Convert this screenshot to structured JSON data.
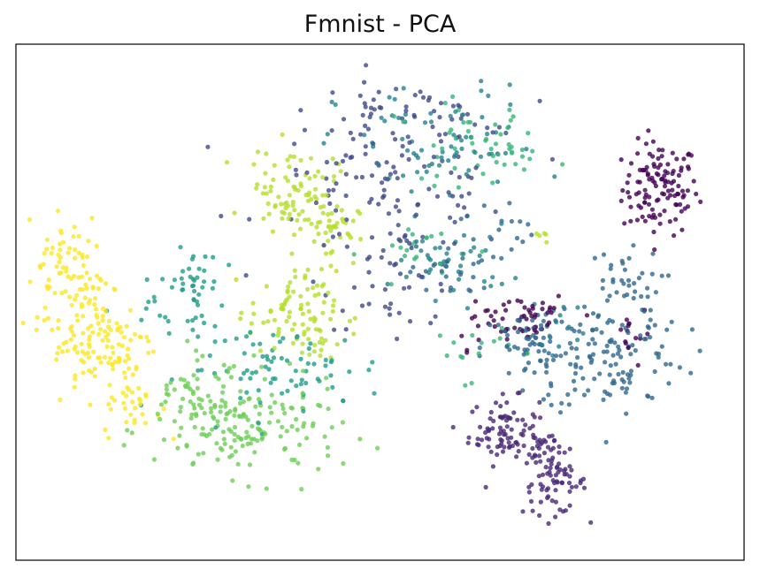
{
  "chart_data": {
    "type": "scatter",
    "title": "Fmnist - PCA",
    "xlabel": "",
    "ylabel": "",
    "xticks": false,
    "yticks": false,
    "grid": false,
    "legend": "none",
    "xlim": [
      0,
      100
    ],
    "ylim": [
      0,
      100
    ],
    "colormap": "viridis",
    "point_alpha": 0.8,
    "series": [
      {
        "class": 0,
        "color": "#440154",
        "blobs": [
          [
            88.5,
            72,
            2.6,
            4.5,
            120
          ],
          [
            70,
            47.5,
            3,
            2.5,
            45
          ],
          [
            84,
            44,
            1.6,
            3,
            14
          ],
          [
            64,
            46,
            2,
            2.5,
            12
          ]
        ]
      },
      {
        "class": 1,
        "color": "#482878",
        "blobs": [
          [
            67,
            25,
            2.4,
            3.2,
            80
          ],
          [
            74,
            15,
            2.2,
            3,
            70
          ],
          [
            72,
            23,
            1.6,
            2.5,
            25
          ]
        ]
      },
      {
        "class": 2,
        "color": "#3e4989",
        "blobs": [
          [
            52,
            73,
            9,
            7,
            110
          ],
          [
            52,
            55,
            5,
            5,
            45
          ],
          [
            53,
            87,
            6,
            2.5,
            40
          ]
        ]
      },
      {
        "class": 3,
        "color": "#31688e",
        "blobs": [
          [
            71,
            41,
            3.5,
            4,
            70
          ],
          [
            82,
            40,
            5,
            6,
            120
          ],
          [
            83,
            54,
            2.8,
            3,
            35
          ],
          [
            60,
            56,
            3,
            2.5,
            25
          ],
          [
            66,
            65,
            2.5,
            3,
            15
          ]
        ]
      },
      {
        "class": 4,
        "color": "#26828e",
        "blobs": [
          [
            58,
            80,
            7,
            6,
            70
          ],
          [
            60,
            58,
            4,
            3.5,
            40
          ],
          [
            75,
            46,
            2,
            3,
            15
          ]
        ]
      },
      {
        "class": 5,
        "color": "#1f9e89",
        "blobs": [
          [
            24,
            53,
            2,
            3.5,
            40
          ],
          [
            37,
            37,
            7,
            4,
            80
          ],
          [
            20,
            48,
            2,
            2,
            10
          ]
        ]
      },
      {
        "class": 6,
        "color": "#35b779",
        "blobs": [
          [
            62,
            81,
            5,
            4,
            40
          ],
          [
            68,
            79,
            2,
            2,
            15
          ],
          [
            56,
            60,
            4,
            3,
            20
          ],
          [
            62,
            41,
            3,
            3,
            15
          ]
        ]
      },
      {
        "class": 7,
        "color": "#6ece58",
        "blobs": [
          [
            32,
            25,
            6.5,
            4.5,
            150
          ],
          [
            24,
            31,
            3,
            3,
            35
          ],
          [
            28,
            35,
            3,
            3,
            20
          ]
        ]
      },
      {
        "class": 8,
        "color": "#b5de2b",
        "blobs": [
          [
            38,
            72,
            3,
            4,
            80
          ],
          [
            43,
            64,
            2,
            3,
            40
          ],
          [
            38,
            48,
            3,
            4,
            80
          ],
          [
            41,
            42,
            1.5,
            2,
            15
          ],
          [
            72,
            62,
            1,
            0.8,
            5
          ]
        ]
      },
      {
        "class": 9,
        "color": "#fde725",
        "blobs": [
          [
            8,
            55,
            2.5,
            6,
            70
          ],
          [
            12,
            42,
            3.5,
            5,
            110
          ],
          [
            16,
            30,
            2,
            3,
            30
          ],
          [
            6,
            60,
            2,
            2,
            15
          ]
        ]
      }
    ]
  }
}
